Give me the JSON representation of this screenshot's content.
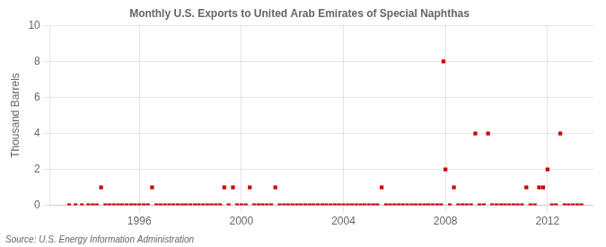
{
  "chart_data": {
    "type": "scatter",
    "title": "Monthly U.S. Exports to United Arab Emirates of Special Naphthas",
    "ylabel": "Thousand Barrels",
    "annotations": [
      "Source: U.S. Energy Information Administration"
    ],
    "color": "#cc0000",
    "marker": "square",
    "grid": true,
    "xlim": [
      1992.5,
      2013.8
    ],
    "xticks": [
      1996,
      2000,
      2004,
      2008,
      2012
    ],
    "ylim": [
      0,
      10
    ],
    "yticks": [
      0,
      2,
      4,
      6,
      8,
      10
    ],
    "x": [
      1993.25,
      1993.5,
      1993.75,
      1994.0,
      1994.17,
      1994.33,
      1994.5,
      1994.67,
      1994.83,
      1995.0,
      1995.17,
      1995.33,
      1995.5,
      1995.67,
      1995.83,
      1996.0,
      1996.17,
      1996.33,
      1996.5,
      1996.67,
      1996.83,
      1997.0,
      1997.17,
      1997.33,
      1997.5,
      1997.67,
      1997.83,
      1998.0,
      1998.17,
      1998.33,
      1998.5,
      1998.67,
      1998.83,
      1999.0,
      1999.17,
      1999.33,
      1999.5,
      1999.67,
      1999.83,
      2000.0,
      2000.17,
      2000.33,
      2000.5,
      2000.67,
      2000.83,
      2001.0,
      2001.17,
      2001.33,
      2001.5,
      2001.67,
      2001.83,
      2002.0,
      2002.17,
      2002.33,
      2002.5,
      2002.67,
      2002.83,
      2003.0,
      2003.17,
      2003.33,
      2003.5,
      2003.67,
      2003.83,
      2004.0,
      2004.17,
      2004.33,
      2004.5,
      2004.67,
      2004.83,
      2005.0,
      2005.17,
      2005.33,
      2005.5,
      2005.67,
      2005.83,
      2006.0,
      2006.17,
      2006.33,
      2006.5,
      2006.67,
      2006.83,
      2007.0,
      2007.17,
      2007.33,
      2007.5,
      2007.67,
      2007.83,
      2007.92,
      2008.0,
      2008.17,
      2008.33,
      2008.5,
      2008.67,
      2008.83,
      2009.0,
      2009.17,
      2009.33,
      2009.5,
      2009.67,
      2009.83,
      2010.0,
      2010.17,
      2010.33,
      2010.5,
      2010.67,
      2010.83,
      2011.0,
      2011.17,
      2011.33,
      2011.5,
      2011.67,
      2011.83,
      2012.0,
      2012.17,
      2012.33,
      2012.5,
      2012.67,
      2012.83,
      2013.0,
      2013.17,
      2013.33
    ],
    "values": [
      0,
      0,
      0,
      0,
      0,
      0,
      1,
      0,
      0,
      0,
      0,
      0,
      0,
      0,
      0,
      0,
      0,
      0,
      1,
      0,
      0,
      0,
      0,
      0,
      0,
      0,
      0,
      0,
      0,
      0,
      0,
      0,
      0,
      0,
      0,
      1,
      0,
      1,
      0,
      0,
      0,
      1,
      0,
      0,
      0,
      0,
      0,
      1,
      0,
      0,
      0,
      0,
      0,
      0,
      0,
      0,
      0,
      0,
      0,
      0,
      0,
      0,
      0,
      0,
      0,
      0,
      0,
      0,
      0,
      0,
      0,
      0,
      1,
      0,
      0,
      0,
      0,
      0,
      0,
      0,
      0,
      0,
      0,
      0,
      0,
      0,
      0,
      8,
      2,
      0,
      1,
      0,
      0,
      0,
      0,
      4,
      0,
      0,
      4,
      0,
      0,
      0,
      0,
      0,
      0,
      0,
      0,
      1,
      0,
      0,
      1,
      1,
      2,
      0,
      0,
      4,
      0,
      0,
      0,
      0,
      0
    ]
  }
}
